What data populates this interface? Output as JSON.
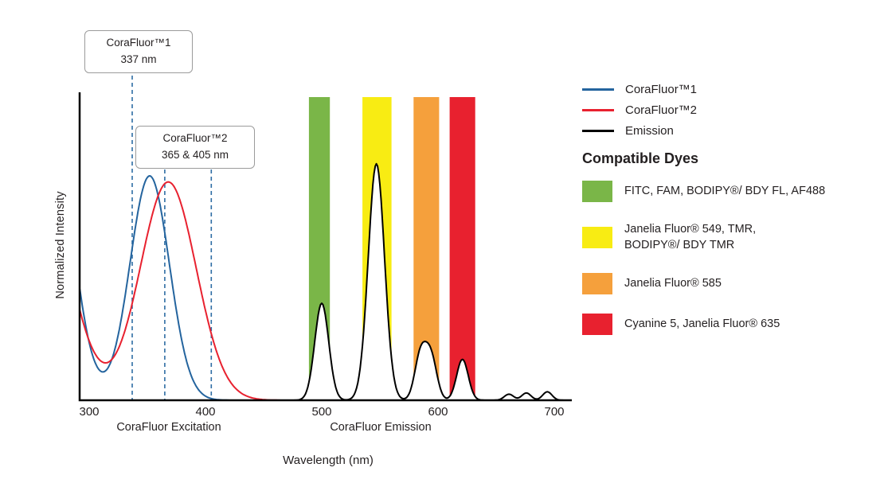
{
  "chart": {
    "ylabel": "Normalized Intensity",
    "xlabel": "Wavelength (nm)",
    "x_ticks": [
      "300",
      "400",
      "500",
      "600",
      "700"
    ],
    "sub_label_excitation": "CoraFluor Excitation",
    "sub_label_emission": "CoraFluor Emission",
    "callout1": {
      "line1": "CoraFluor™1",
      "line2": "337 nm"
    },
    "callout2": {
      "line1": "CoraFluor™2",
      "line2": "365 & 405 nm"
    }
  },
  "legend": {
    "series": [
      {
        "label": "CoraFluor™1",
        "color": "#24649e"
      },
      {
        "label": "CoraFluor™2",
        "color": "#e8212f"
      },
      {
        "label": "Emission",
        "color": "#000000"
      }
    ],
    "heading": "Compatible Dyes",
    "dyes": [
      {
        "label": "FITC, FAM, BODIPY®/ BDY FL, AF488",
        "color": "#7ab648"
      },
      {
        "label": "Janelia Fluor® 549, TMR,\nBODIPY®/ BDY TMR",
        "color": "#f8ec13"
      },
      {
        "label": "Janelia Fluor® 585",
        "color": "#f5a03c"
      },
      {
        "label": "Cyanine 5, Janelia Fluor® 635",
        "color": "#e8212f"
      }
    ]
  },
  "chart_data": {
    "type": "line",
    "title": "CoraFluor excitation and emission spectra with compatible dye windows",
    "xlabel": "Wavelength (nm)",
    "ylabel": "Normalized Intensity",
    "xlim": [
      292,
      715
    ],
    "ylim": [
      0,
      1
    ],
    "x_ticks": [
      300,
      400,
      500,
      600,
      700
    ],
    "axis_color": "#000000",
    "annotation_line_color": "#2e6da4",
    "annotations": [
      {
        "label": "CoraFluor™1 excitation maximum 337 nm",
        "lines_nm": [
          337
        ]
      },
      {
        "label": "CoraFluor™2 excitation maxima 365 & 405 nm",
        "lines_nm": [
          365,
          405
        ]
      }
    ],
    "bands": [
      {
        "name": "FITC, FAM, BODIPY/BDY FL, AF488 window",
        "range_nm": [
          489,
          507
        ],
        "color": "#7ab648"
      },
      {
        "name": "Janelia Fluor 549, TMR, BODIPY/BDY TMR window",
        "range_nm": [
          535,
          560
        ],
        "color": "#f8ec13"
      },
      {
        "name": "Janelia Fluor 585 window",
        "range_nm": [
          579,
          601
        ],
        "color": "#f5a03c"
      },
      {
        "name": "Cyanine 5, Janelia Fluor 635 window",
        "range_nm": [
          610,
          632
        ],
        "color": "#e8212f"
      }
    ],
    "series": [
      {
        "name": "CoraFluor™1 excitation",
        "color": "#24649e",
        "fill": false,
        "peaks": [
          {
            "center": 265,
            "amp": 1.0,
            "sigma": 19
          },
          {
            "center": 352,
            "amp": 0.74,
            "sigma": 17
          }
        ]
      },
      {
        "name": "CoraFluor™2 excitation",
        "color": "#e8212f",
        "fill": false,
        "peaks": [
          {
            "center": 250,
            "amp": 0.9,
            "sigma": 28
          },
          {
            "center": 368,
            "amp": 0.72,
            "sigma": 24
          }
        ]
      },
      {
        "name": "Emission",
        "color": "#000000",
        "fill": true,
        "peaks": [
          {
            "center": 500,
            "amp": 0.32,
            "sigma": 6
          },
          {
            "center": 547,
            "amp": 0.78,
            "sigma": 7
          },
          {
            "center": 585,
            "amp": 0.15,
            "sigma": 5
          },
          {
            "center": 594,
            "amp": 0.14,
            "sigma": 5
          },
          {
            "center": 621,
            "amp": 0.135,
            "sigma": 5
          },
          {
            "center": 661,
            "amp": 0.02,
            "sigma": 4
          },
          {
            "center": 676,
            "amp": 0.024,
            "sigma": 4
          },
          {
            "center": 694,
            "amp": 0.028,
            "sigma": 4
          }
        ]
      }
    ]
  }
}
